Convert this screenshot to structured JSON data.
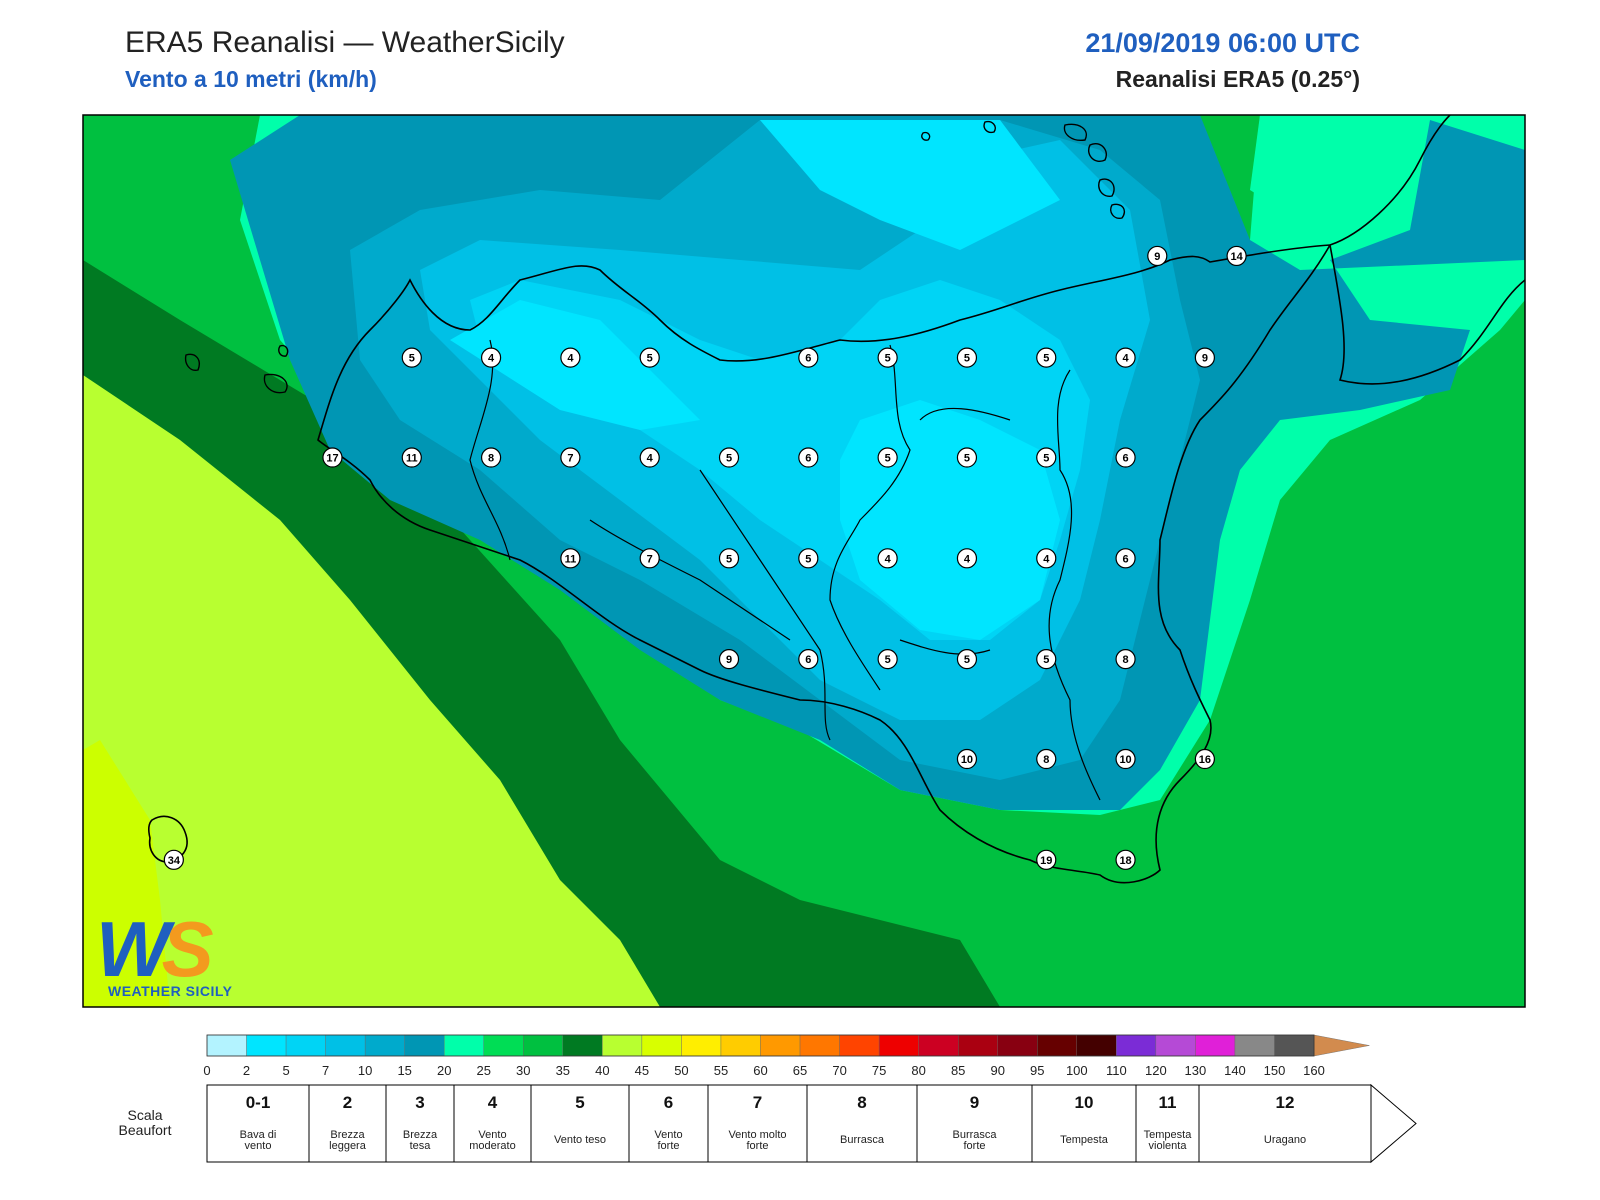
{
  "header": {
    "title": "ERA5 Reanalisi — WeatherSicily",
    "subtitle": "Vento a 10 metri (km/h)",
    "datetime": "21/09/2019 06:00 UTC",
    "source": "Reanalisi ERA5 (0.25°)"
  },
  "logo": {
    "text": "WEATHER SICILY",
    "letters": "WS"
  },
  "stations": [
    {
      "value": "9",
      "lon": 0.745,
      "lat": 0.158
    },
    {
      "value": "14",
      "lon": 0.8,
      "lat": 0.158
    },
    {
      "value": "5",
      "lon": 0.228,
      "lat": 0.272
    },
    {
      "value": "4",
      "lon": 0.283,
      "lat": 0.272
    },
    {
      "value": "4",
      "lon": 0.338,
      "lat": 0.272
    },
    {
      "value": "5",
      "lon": 0.393,
      "lat": 0.272
    },
    {
      "value": "6",
      "lon": 0.503,
      "lat": 0.272
    },
    {
      "value": "5",
      "lon": 0.558,
      "lat": 0.272
    },
    {
      "value": "5",
      "lon": 0.613,
      "lat": 0.272
    },
    {
      "value": "5",
      "lon": 0.668,
      "lat": 0.272
    },
    {
      "value": "4",
      "lon": 0.723,
      "lat": 0.272
    },
    {
      "value": "9",
      "lon": 0.778,
      "lat": 0.272
    },
    {
      "value": "17",
      "lon": 0.173,
      "lat": 0.384
    },
    {
      "value": "11",
      "lon": 0.228,
      "lat": 0.384
    },
    {
      "value": "8",
      "lon": 0.283,
      "lat": 0.384
    },
    {
      "value": "7",
      "lon": 0.338,
      "lat": 0.384
    },
    {
      "value": "4",
      "lon": 0.393,
      "lat": 0.384
    },
    {
      "value": "5",
      "lon": 0.448,
      "lat": 0.384
    },
    {
      "value": "6",
      "lon": 0.503,
      "lat": 0.384
    },
    {
      "value": "5",
      "lon": 0.558,
      "lat": 0.384
    },
    {
      "value": "5",
      "lon": 0.613,
      "lat": 0.384
    },
    {
      "value": "5",
      "lon": 0.668,
      "lat": 0.384
    },
    {
      "value": "6",
      "lon": 0.723,
      "lat": 0.384
    },
    {
      "value": "11",
      "lon": 0.338,
      "lat": 0.497
    },
    {
      "value": "7",
      "lon": 0.393,
      "lat": 0.497
    },
    {
      "value": "5",
      "lon": 0.448,
      "lat": 0.497
    },
    {
      "value": "5",
      "lon": 0.503,
      "lat": 0.497
    },
    {
      "value": "4",
      "lon": 0.558,
      "lat": 0.497
    },
    {
      "value": "4",
      "lon": 0.613,
      "lat": 0.497
    },
    {
      "value": "4",
      "lon": 0.668,
      "lat": 0.497
    },
    {
      "value": "6",
      "lon": 0.723,
      "lat": 0.497
    },
    {
      "value": "9",
      "lon": 0.448,
      "lat": 0.61
    },
    {
      "value": "6",
      "lon": 0.503,
      "lat": 0.61
    },
    {
      "value": "5",
      "lon": 0.558,
      "lat": 0.61
    },
    {
      "value": "5",
      "lon": 0.613,
      "lat": 0.61
    },
    {
      "value": "5",
      "lon": 0.668,
      "lat": 0.61
    },
    {
      "value": "8",
      "lon": 0.723,
      "lat": 0.61
    },
    {
      "value": "10",
      "lon": 0.613,
      "lat": 0.722
    },
    {
      "value": "8",
      "lon": 0.668,
      "lat": 0.722
    },
    {
      "value": "10",
      "lon": 0.723,
      "lat": 0.722
    },
    {
      "value": "16",
      "lon": 0.778,
      "lat": 0.722
    },
    {
      "value": "19",
      "lon": 0.668,
      "lat": 0.835
    },
    {
      "value": "18",
      "lon": 0.723,
      "lat": 0.835
    },
    {
      "value": "34",
      "lon": 0.063,
      "lat": 0.835
    }
  ],
  "colorbar": {
    "ticks": [
      "0",
      "2",
      "5",
      "7",
      "10",
      "15",
      "20",
      "25",
      "30",
      "35",
      "40",
      "45",
      "50",
      "55",
      "60",
      "65",
      "70",
      "75",
      "80",
      "85",
      "90",
      "95",
      "100",
      "110",
      "120",
      "130",
      "140",
      "150",
      "160"
    ],
    "colors": [
      "#b3f3ff",
      "#00e5ff",
      "#00d4f5",
      "#00c0e6",
      "#00aacc",
      "#0096b4",
      "#00ffaa",
      "#00dd55",
      "#00c040",
      "#007a22",
      "#b8ff30",
      "#d8ff00",
      "#ffee00",
      "#ffcc00",
      "#ff9900",
      "#ff7700",
      "#ff4400",
      "#ee0000",
      "#cc0022",
      "#aa0011",
      "#880011",
      "#660000",
      "#440000",
      "#7b2cd6",
      "#b54ad6",
      "#e020d8",
      "#888888",
      "#555555",
      "#000000",
      "#8b4a2b",
      "#d28b4e"
    ]
  },
  "beaufort": {
    "title_line1": "Scala",
    "title_line2": "Beaufort",
    "levels": [
      {
        "num": "0-1",
        "line1": "Bava di",
        "line2": "vento"
      },
      {
        "num": "2",
        "line1": "Brezza",
        "line2": "leggera"
      },
      {
        "num": "3",
        "line1": "Brezza",
        "line2": "tesa"
      },
      {
        "num": "4",
        "line1": "Vento",
        "line2": "moderato"
      },
      {
        "num": "5",
        "line1": "Vento teso",
        "line2": ""
      },
      {
        "num": "6",
        "line1": "Vento",
        "line2": "forte"
      },
      {
        "num": "7",
        "line1": "Vento molto",
        "line2": "forte"
      },
      {
        "num": "8",
        "line1": "Burrasca",
        "line2": ""
      },
      {
        "num": "9",
        "line1": "Burrasca",
        "line2": "forte"
      },
      {
        "num": "10",
        "line1": "Tempesta",
        "line2": ""
      },
      {
        "num": "11",
        "line1": "Tempesta",
        "line2": "violenta"
      },
      {
        "num": "12",
        "line1": "Uragano",
        "line2": ""
      }
    ]
  }
}
